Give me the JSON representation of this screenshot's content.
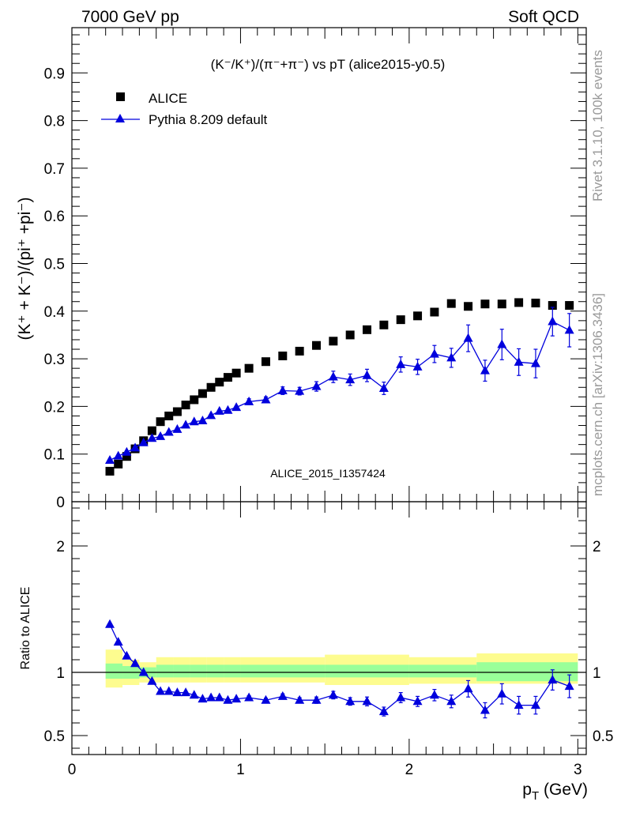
{
  "header": {
    "left": "7000 GeV pp",
    "right": "Soft QCD"
  },
  "side_text": {
    "top": "Rivet 3.1.10,  100k events",
    "bottom": "mcplots.cern.ch [arXiv:1306.3436]"
  },
  "watermark": "ALICE_2015_I1357424",
  "chart_data": [
    {
      "type": "scatter",
      "panel": "main",
      "title": "(K⁻/K⁺)/(π⁻+π⁻) vs pT (alice2015-y0.5)",
      "ylabel": "(K⁺ + K⁻)/(pi⁺ +pi⁻)",
      "xlabel": "",
      "xlim": [
        0,
        3.05
      ],
      "ylim": [
        0,
        0.995
      ],
      "yticks": [
        0,
        0.1,
        0.2,
        0.3,
        0.4,
        0.5,
        0.6,
        0.7,
        0.8,
        0.9
      ],
      "ytick_labels": [
        "0",
        "0.1",
        "0.2",
        "0.3",
        "0.4",
        "0.5",
        "0.6",
        "0.7",
        "0.8",
        "0.9"
      ],
      "legend_placement": "top-left",
      "series": [
        {
          "name": "ALICE",
          "marker": "square",
          "color": "#000000",
          "x": [
            0.225,
            0.275,
            0.325,
            0.375,
            0.425,
            0.475,
            0.525,
            0.575,
            0.625,
            0.675,
            0.725,
            0.775,
            0.825,
            0.875,
            0.925,
            0.975,
            1.05,
            1.15,
            1.25,
            1.35,
            1.45,
            1.55,
            1.65,
            1.75,
            1.85,
            1.95,
            2.05,
            2.15,
            2.25,
            2.35,
            2.45,
            2.55,
            2.65,
            2.75,
            2.85,
            2.95
          ],
          "y": [
            0.064,
            0.079,
            0.095,
            0.111,
            0.128,
            0.149,
            0.168,
            0.18,
            0.189,
            0.203,
            0.214,
            0.227,
            0.24,
            0.251,
            0.261,
            0.27,
            0.28,
            0.294,
            0.306,
            0.316,
            0.328,
            0.337,
            0.35,
            0.361,
            0.371,
            0.382,
            0.39,
            0.398,
            0.416,
            0.41,
            0.415,
            0.415,
            0.418,
            0.417,
            0.412,
            0.412
          ]
        },
        {
          "name": "Pythia 8.209 default",
          "marker": "triangle",
          "color": "#0000dd",
          "x": [
            0.225,
            0.275,
            0.325,
            0.375,
            0.425,
            0.475,
            0.525,
            0.575,
            0.625,
            0.675,
            0.725,
            0.775,
            0.825,
            0.875,
            0.925,
            0.975,
            1.05,
            1.15,
            1.25,
            1.35,
            1.45,
            1.55,
            1.65,
            1.75,
            1.85,
            1.95,
            2.05,
            2.15,
            2.25,
            2.35,
            2.45,
            2.55,
            2.65,
            2.75,
            2.85,
            2.95
          ],
          "y": [
            0.087,
            0.096,
            0.104,
            0.113,
            0.124,
            0.133,
            0.137,
            0.146,
            0.152,
            0.161,
            0.168,
            0.17,
            0.181,
            0.19,
            0.192,
            0.198,
            0.21,
            0.214,
            0.233,
            0.232,
            0.242,
            0.262,
            0.256,
            0.265,
            0.238,
            0.288,
            0.283,
            0.31,
            0.302,
            0.343,
            0.275,
            0.33,
            0.293,
            0.29,
            0.378,
            0.36
          ],
          "yerr": [
            0,
            0,
            0,
            0,
            0,
            0,
            0,
            0,
            0,
            0,
            0,
            0,
            0,
            0,
            0,
            0,
            0.006,
            0.006,
            0.008,
            0.008,
            0.01,
            0.012,
            0.012,
            0.013,
            0.013,
            0.016,
            0.016,
            0.018,
            0.02,
            0.028,
            0.022,
            0.032,
            0.028,
            0.03,
            0.03,
            0.035
          ]
        }
      ]
    },
    {
      "type": "scatter",
      "panel": "ratio",
      "ylabel": "Ratio to ALICE",
      "xlabel": "p_T (GeV)",
      "xlim": [
        0,
        3.05
      ],
      "ylim": [
        0.35,
        2.35
      ],
      "xticks": [
        0,
        1,
        2,
        3
      ],
      "xtick_labels": [
        "0",
        "1",
        "2",
        "3"
      ],
      "yticks": [
        0.5,
        1,
        2
      ],
      "ytick_labels": [
        "0.5",
        "1",
        "2"
      ],
      "bands": {
        "x_edges": [
          0.2,
          0.3,
          0.4,
          0.5,
          0.6,
          0.7,
          0.8,
          0.9,
          1.0,
          1.5,
          2.0,
          2.4,
          3.0
        ],
        "yellow_low": [
          0.88,
          0.9,
          0.92,
          0.92,
          0.92,
          0.92,
          0.92,
          0.92,
          0.92,
          0.9,
          0.91,
          0.91,
          0.91
        ],
        "yellow_high": [
          1.18,
          1.1,
          1.08,
          1.12,
          1.12,
          1.12,
          1.12,
          1.12,
          1.12,
          1.14,
          1.12,
          1.15,
          1.15
        ],
        "green_low": [
          0.95,
          0.95,
          0.96,
          0.96,
          0.96,
          0.96,
          0.96,
          0.96,
          0.96,
          0.96,
          0.96,
          0.93,
          0.93
        ],
        "green_high": [
          1.07,
          1.05,
          1.04,
          1.06,
          1.06,
          1.06,
          1.06,
          1.06,
          1.06,
          1.06,
          1.06,
          1.08,
          1.08
        ],
        "yellow_color": "#fdfc8f",
        "green_color": "#99ff99"
      },
      "series": [
        {
          "name": "Pythia 8.209 default",
          "marker": "triangle",
          "color": "#0000dd",
          "x": [
            0.225,
            0.275,
            0.325,
            0.375,
            0.425,
            0.475,
            0.525,
            0.575,
            0.625,
            0.675,
            0.725,
            0.775,
            0.825,
            0.875,
            0.925,
            0.975,
            1.05,
            1.15,
            1.25,
            1.35,
            1.45,
            1.55,
            1.65,
            1.75,
            1.85,
            1.95,
            2.05,
            2.15,
            2.25,
            2.35,
            2.45,
            2.55,
            2.65,
            2.75,
            2.85,
            2.95
          ],
          "y": [
            1.38,
            1.24,
            1.13,
            1.07,
            1.0,
            0.93,
            0.85,
            0.85,
            0.84,
            0.84,
            0.82,
            0.79,
            0.8,
            0.8,
            0.78,
            0.79,
            0.8,
            0.78,
            0.81,
            0.78,
            0.78,
            0.82,
            0.77,
            0.77,
            0.69,
            0.8,
            0.77,
            0.82,
            0.77,
            0.87,
            0.7,
            0.83,
            0.74,
            0.74,
            0.94,
            0.89
          ],
          "yerr": [
            0,
            0,
            0,
            0,
            0,
            0,
            0,
            0,
            0,
            0,
            0,
            0,
            0,
            0,
            0,
            0,
            0.015,
            0.015,
            0.02,
            0.02,
            0.025,
            0.03,
            0.03,
            0.035,
            0.035,
            0.04,
            0.04,
            0.045,
            0.05,
            0.065,
            0.06,
            0.08,
            0.07,
            0.07,
            0.08,
            0.09
          ]
        }
      ]
    }
  ]
}
